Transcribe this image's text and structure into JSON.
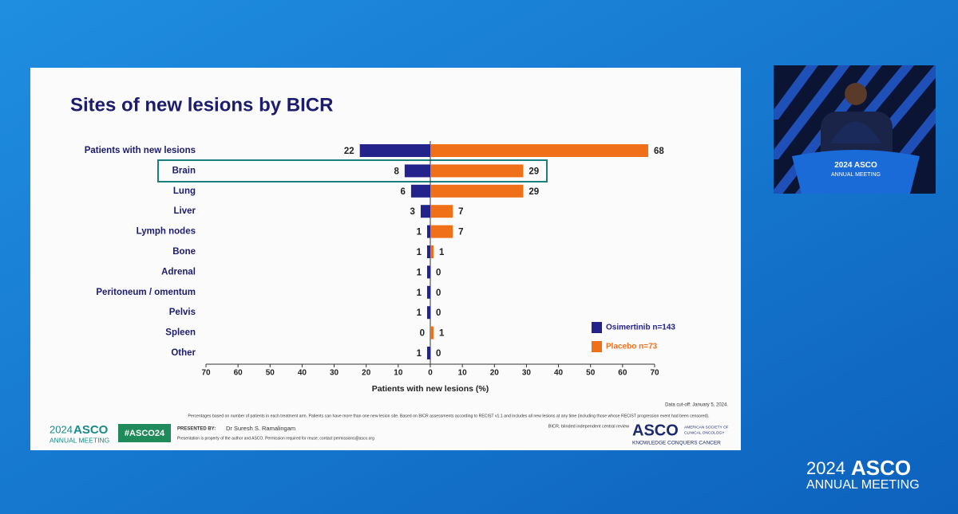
{
  "chart_data": {
    "type": "bar",
    "title": "Sites of new lesions by BICR",
    "categories": [
      "Patients with new lesions",
      "Brain",
      "Lung",
      "Liver",
      "Lymph nodes",
      "Bone",
      "Adrenal",
      "Peritoneum / omentum",
      "Pelvis",
      "Spleen",
      "Other"
    ],
    "series": [
      {
        "name": "Osimertinib n=143",
        "color": "#24238c",
        "values": [
          22,
          8,
          6,
          3,
          1,
          1,
          1,
          1,
          1,
          0,
          1
        ]
      },
      {
        "name": "Placebo n=73",
        "color": "#f0701a",
        "values": [
          68,
          29,
          29,
          7,
          7,
          1,
          0,
          0,
          0,
          1,
          0
        ]
      }
    ],
    "xlabel": "Patients with new lesions (%)",
    "xlim": [
      -70,
      70
    ],
    "xticks": [
      {
        "value": -70,
        "label": "70"
      },
      {
        "value": -60,
        "label": "60"
      },
      {
        "value": -50,
        "label": "50"
      },
      {
        "value": -40,
        "label": "40"
      },
      {
        "value": -30,
        "label": "30"
      },
      {
        "value": -20,
        "label": "20"
      },
      {
        "value": -10,
        "label": "10"
      },
      0,
      10,
      20,
      30,
      40,
      50,
      60,
      70
    ]
  },
  "slide_footer": {
    "data_cutoff": "Data cut-off: January 5, 2024.",
    "footnote": "Percentages based on number of patients in each treatment arm. Patients can have more than one new lesion site. Based on BICR assessments according to RECIST v1.1 and includes all new lesions at any time (including those whose RECIST progression event had been censored).",
    "abbreviation": "BICR, blinded independent central review",
    "presented_by_label": "PRESENTED BY:",
    "presenter": "Dr Suresh S. Ramalingam",
    "permission": "Presentation is property of the author and ASCO. Permission required for reuse; contact permissions@asco.org",
    "hashtag": "#ASCO24",
    "meeting_logo": {
      "year": "2024",
      "brand": "ASCO",
      "subtitle": "ANNUAL MEETING"
    },
    "society_logo": {
      "brand": "ASCO",
      "name_line1": "AMERICAN SOCIETY OF",
      "name_line2": "CLINICAL ONCOLOGY",
      "tagline": "KNOWLEDGE CONQUERS CANCER"
    }
  },
  "screen": {
    "podium_logo": {
      "year": "2024",
      "brand": "ASCO",
      "subtitle": "ANNUAL MEETING"
    },
    "corner_logo": {
      "year": "2024",
      "brand": "ASCO",
      "subtitle": "ANNUAL MEETING"
    }
  }
}
